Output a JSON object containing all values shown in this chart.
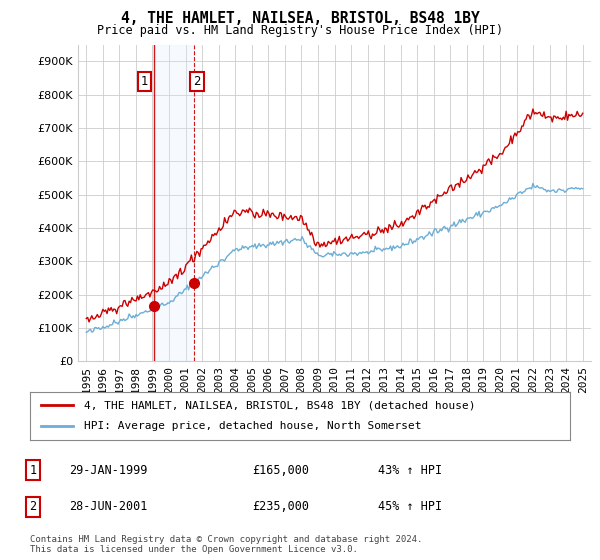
{
  "title": "4, THE HAMLET, NAILSEA, BRISTOL, BS48 1BY",
  "subtitle": "Price paid vs. HM Land Registry's House Price Index (HPI)",
  "ytick_values": [
    0,
    100000,
    200000,
    300000,
    400000,
    500000,
    600000,
    700000,
    800000,
    900000
  ],
  "ylim": [
    0,
    950000
  ],
  "xlim_start": 1994.5,
  "xlim_end": 2025.5,
  "hpi_color": "#6baed6",
  "price_color": "#cc0000",
  "vline_color": "#cc0000",
  "shade_color": "#ddeeff",
  "marker_color": "#cc0000",
  "transaction1_x": 1999.08,
  "transaction1_y": 165000,
  "transaction2_x": 2001.5,
  "transaction2_y": 235000,
  "legend_label1": "4, THE HAMLET, NAILSEA, BRISTOL, BS48 1BY (detached house)",
  "legend_label2": "HPI: Average price, detached house, North Somerset",
  "table_entries": [
    {
      "num": "1",
      "date": "29-JAN-1999",
      "price": "£165,000",
      "pct": "43% ↑ HPI"
    },
    {
      "num": "2",
      "date": "28-JUN-2001",
      "price": "£235,000",
      "pct": "45% ↑ HPI"
    }
  ],
  "footer": "Contains HM Land Registry data © Crown copyright and database right 2024.\nThis data is licensed under the Open Government Licence v3.0.",
  "background_color": "#ffffff",
  "grid_color": "#cccccc"
}
